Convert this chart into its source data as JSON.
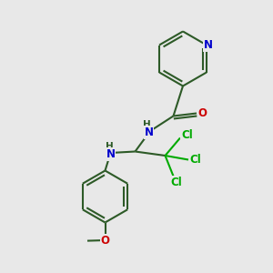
{
  "bg_color": "#e8e8e8",
  "bond_color": "#2d5a27",
  "n_color": "#0000cc",
  "o_color": "#cc0000",
  "cl_color": "#00aa00",
  "lw": 1.5,
  "dbo": 0.08,
  "figsize": [
    3.0,
    3.0
  ],
  "dpi": 100,
  "xlim": [
    0,
    10
  ],
  "ylim": [
    0,
    10
  ]
}
